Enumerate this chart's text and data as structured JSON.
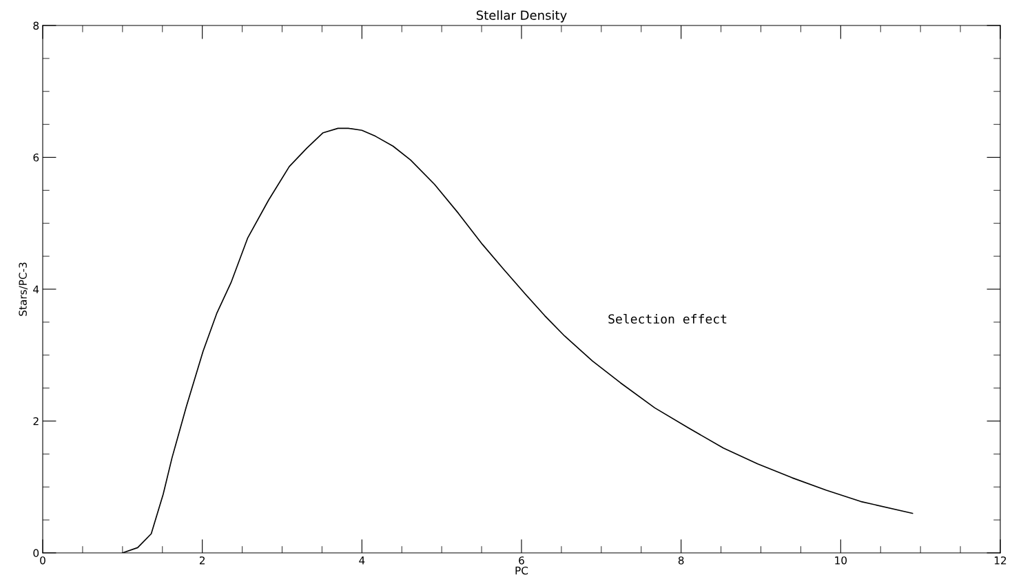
{
  "chart_data": {
    "type": "line",
    "title": "Stellar Density",
    "xlabel": "PC",
    "ylabel": "Stars/PC-3",
    "x": [
      1.0,
      1.19,
      1.36,
      1.51,
      1.62,
      1.8,
      2.01,
      2.18,
      2.36,
      2.57,
      2.83,
      3.09,
      3.31,
      3.51,
      3.7,
      3.83,
      4.0,
      4.17,
      4.39,
      4.61,
      4.91,
      5.21,
      5.51,
      5.77,
      6.03,
      6.29,
      6.54,
      6.89,
      7.24,
      7.67,
      8.1,
      8.53,
      8.96,
      9.39,
      9.82,
      10.25,
      10.9
    ],
    "series": [
      {
        "color": "#000000",
        "values": [
          0,
          0.08,
          0.29,
          0.89,
          1.44,
          2.22,
          3.06,
          3.63,
          4.1,
          4.78,
          5.35,
          5.86,
          6.14,
          6.37,
          6.44,
          6.44,
          6.41,
          6.32,
          6.17,
          5.96,
          5.59,
          5.15,
          4.68,
          4.31,
          3.95,
          3.6,
          3.29,
          2.91,
          2.58,
          2.2,
          1.89,
          1.59,
          1.35,
          1.14,
          0.95,
          0.78,
          0.6
        ]
      }
    ],
    "xlim": [
      0,
      12
    ],
    "xticks": [
      0,
      2,
      4,
      6,
      8,
      10,
      12
    ],
    "ylim": [
      0,
      8
    ],
    "yticks": [
      0,
      2,
      4,
      6,
      8
    ],
    "annotations": [
      "Selection effect"
    ],
    "grid": false,
    "legend": false,
    "marker": "none",
    "line_style": "solid"
  }
}
